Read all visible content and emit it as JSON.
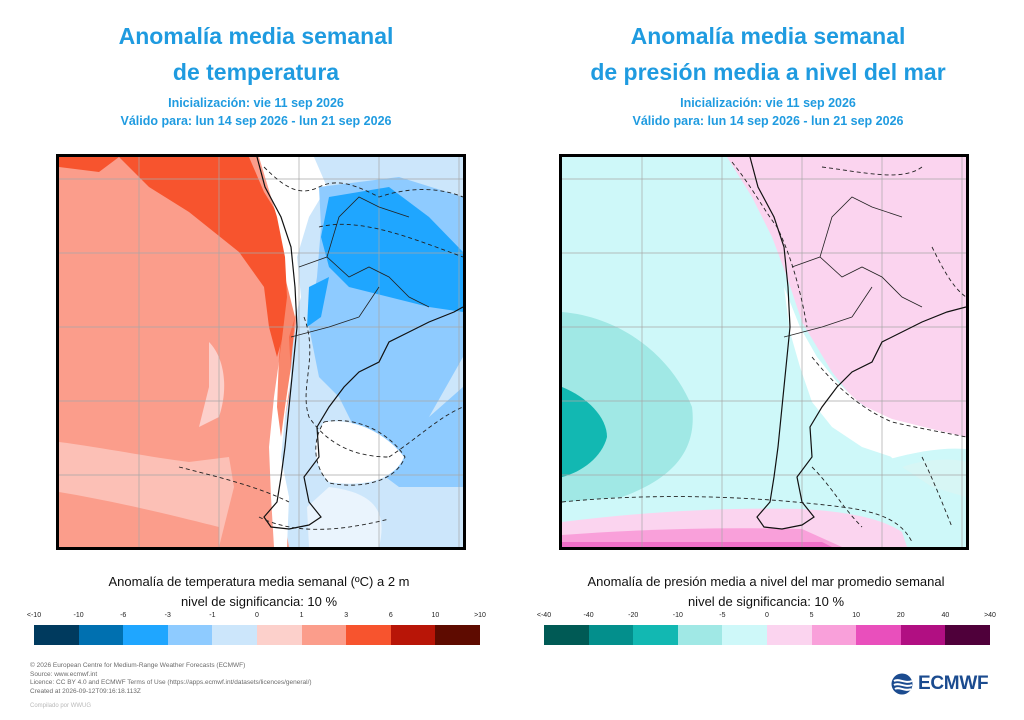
{
  "left": {
    "title_line1": "Anomalía media semanal",
    "title_line2": "de temperatura",
    "init": "Inicialización: vie 11 sep 2026",
    "valid": "Válido para: lun 14 sep 2026 - lun 21 sep 2026",
    "colorbar_title": "Anomalía de temperatura media semanal (ºC) a 2 m",
    "significance": "nivel de significancia: 10 %",
    "tick_labels": [
      "<-10",
      "-10",
      "-6",
      "-3",
      "-1",
      "0",
      "1",
      "3",
      "6",
      "10",
      ">10"
    ],
    "colors": [
      "#003a5e",
      "#0070b0",
      "#1fa6ff",
      "#8ecbff",
      "#cce6fb",
      "#fcd0cb",
      "#fb9d8b",
      "#f7542e",
      "#b81507",
      "#5e0b00"
    ]
  },
  "right": {
    "title_line1": "Anomalía media semanal",
    "title_line2": "de presión media a nivel del mar",
    "init": "Inicialización: vie 11 sep 2026",
    "valid": "Válido para: lun 14 sep 2026 - lun 21 sep 2026",
    "colorbar_title": "Anomalía de presión media a nivel del mar promedio semanal",
    "significance": "nivel de significancia: 10 %",
    "tick_labels": [
      "<-40",
      "-40",
      "-20",
      "-10",
      "-5",
      "0",
      "5",
      "10",
      "20",
      "40",
      ">40"
    ],
    "colors": [
      "#005a55",
      "#038f8c",
      "#12b8b2",
      "#a0e8e5",
      "#cef8f9",
      "#fbd4ef",
      "#f9a0da",
      "#e94fbc",
      "#b10f82",
      "#4f003a"
    ]
  },
  "footer": {
    "line1": "© 2026 European Centre for Medium-Range Weather Forecasts (ECMWF)",
    "line2": "Source: www.ecmwf.int",
    "line3": "Licence: CC BY 4.0 and ECMWF Terms of Use (https://apps.ecmwf.int/datasets/licences/general/)",
    "line4": "Created at 2026-09-12T09:16:18.113Z",
    "compiled": "Compilado por WWUG"
  },
  "logo": {
    "text": "ECMWF",
    "icon": "ecmwf-logo-icon"
  }
}
